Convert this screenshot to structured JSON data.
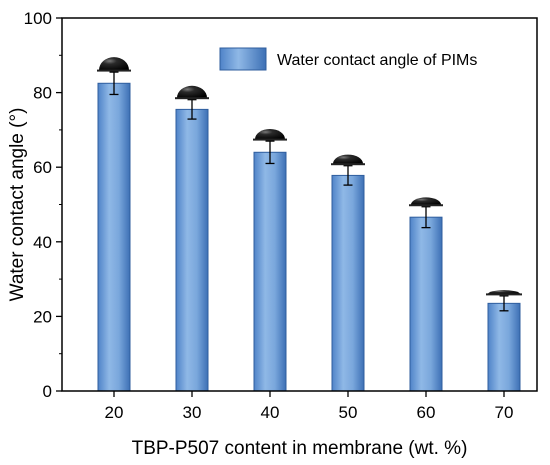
{
  "chart_data": {
    "type": "bar",
    "xlabel": "TBP-P507 content in membrane (wt. %)",
    "ylabel": "Water contact angle (°)",
    "categories": [
      "20",
      "30",
      "40",
      "50",
      "60",
      "70"
    ],
    "series": [
      {
        "name": "Water contact angle of PIMs",
        "values": [
          82.5,
          75.5,
          64.0,
          57.8,
          46.6,
          23.5
        ],
        "errors": [
          3.0,
          2.6,
          3.0,
          2.6,
          2.8,
          2.0
        ],
        "color": "#6b9bd4"
      }
    ],
    "ylim": [
      0,
      100
    ],
    "yticks": [
      "0",
      "20",
      "40",
      "60",
      "80",
      "100"
    ],
    "grid": false,
    "legend_position": "top-right",
    "annotations": "water droplet profile image above each bar"
  }
}
